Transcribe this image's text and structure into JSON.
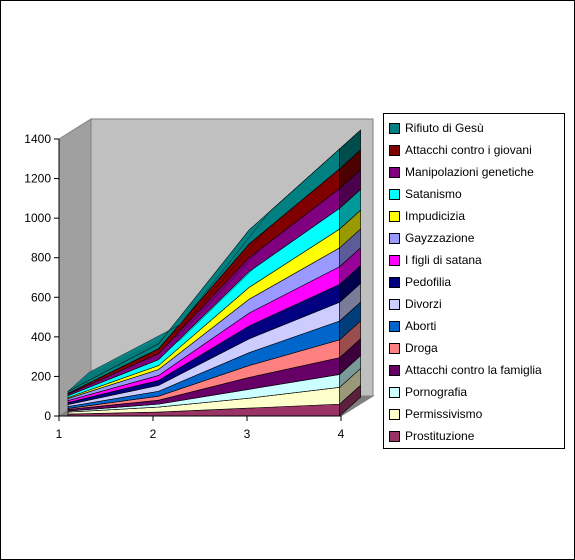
{
  "chart_data": {
    "type": "area",
    "stacked": true,
    "style": "3d",
    "title": "",
    "xlabel": "",
    "ylabel": "",
    "categories": [
      "1",
      "2",
      "3",
      "4"
    ],
    "yticks": [
      0,
      200,
      400,
      600,
      800,
      1000,
      1200,
      1400
    ],
    "ylim": [
      0,
      1400
    ],
    "grid": false,
    "legend_position": "right",
    "series": [
      {
        "name": "Prostituzione",
        "color": "#993366",
        "values": [
          10,
          20,
          40,
          60
        ]
      },
      {
        "name": "Permissivismo",
        "color": "#ffffcc",
        "values": [
          10,
          25,
          50,
          85
        ]
      },
      {
        "name": "Pornografia",
        "color": "#ccffff",
        "values": [
          5,
          15,
          45,
          65
        ]
      },
      {
        "name": "Attacchi contro la famiglia",
        "color": "#660066",
        "values": [
          8,
          20,
          60,
          85
        ]
      },
      {
        "name": "Droga",
        "color": "#ff8080",
        "values": [
          5,
          20,
          60,
          90
        ]
      },
      {
        "name": "Aborti",
        "color": "#0066cc",
        "values": [
          10,
          25,
          65,
          95
        ]
      },
      {
        "name": "Divorzi",
        "color": "#ccccff",
        "values": [
          10,
          30,
          70,
          95
        ]
      },
      {
        "name": "Pedofilia",
        "color": "#000080",
        "values": [
          10,
          25,
          65,
          90
        ]
      },
      {
        "name": "I figli di satana",
        "color": "#ff00ff",
        "values": [
          10,
          25,
          65,
          90
        ]
      },
      {
        "name": "Gayzzazione",
        "color": "#9999ff",
        "values": [
          10,
          30,
          70,
          95
        ]
      },
      {
        "name": "Impudicizia",
        "color": "#ffff00",
        "values": [
          5,
          20,
          60,
          95
        ]
      },
      {
        "name": "Satanismo",
        "color": "#00ffff",
        "values": [
          10,
          30,
          80,
          105
        ]
      },
      {
        "name": "Manipolazioni genetiche",
        "color": "#800080",
        "values": [
          7,
          30,
          70,
          100
        ]
      },
      {
        "name": "Attacchi contro i giovani",
        "color": "#800000",
        "values": [
          5,
          25,
          70,
          100
        ]
      },
      {
        "name": "Rifiuto di Gesù",
        "color": "#008080",
        "values": [
          10,
          25,
          70,
          100
        ]
      }
    ]
  }
}
